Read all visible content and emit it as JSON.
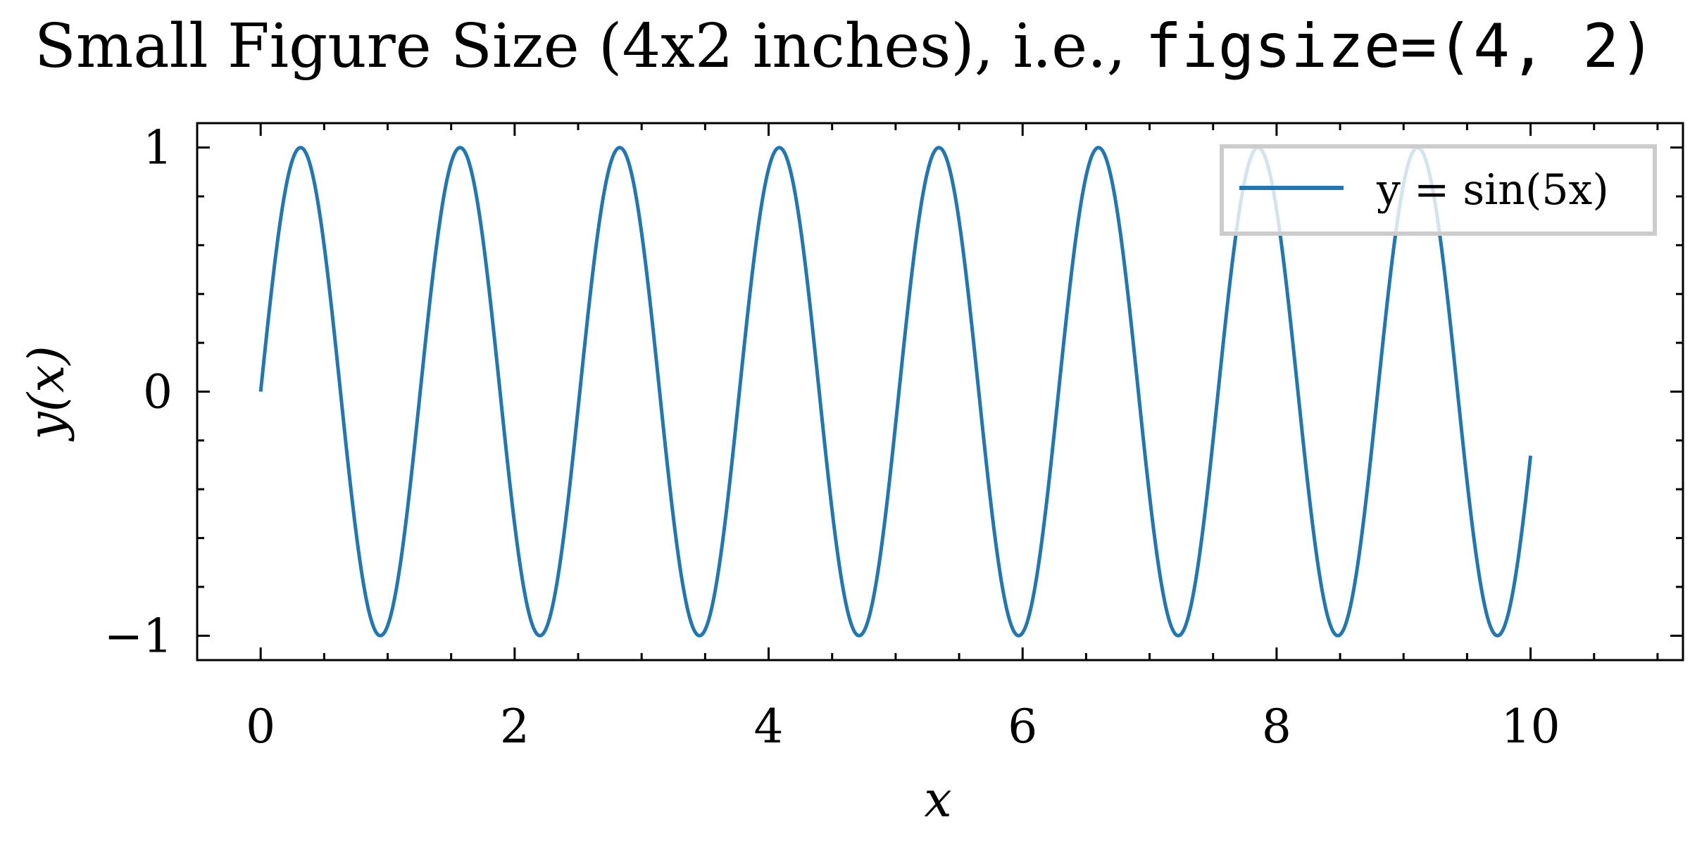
{
  "chart_data": {
    "type": "line",
    "title": {
      "text": "Small Figure Size (4x2 inches), i.e., ",
      "code": "figsize=(4, 2)"
    },
    "xlabel": "x",
    "ylabel": "y(x)",
    "xlim": [
      -0.5,
      11.2
    ],
    "ylim": [
      -1.1,
      1.1
    ],
    "xticks": [
      0,
      2,
      4,
      6,
      8,
      10
    ],
    "xtick_labels": [
      "0",
      "2",
      "4",
      "6",
      "8",
      "10"
    ],
    "yticks": [
      -1,
      0,
      1
    ],
    "ytick_labels": [
      "−1",
      "0",
      "1"
    ],
    "x_minor_step": 0.5,
    "y_minor_step": 0.2,
    "grid": false,
    "legend": {
      "location": "top-right",
      "entries": [
        "y = sin(5x)"
      ]
    },
    "series": [
      {
        "name": "y = sin(5x)",
        "function": "sin(5x)",
        "x_range": [
          0,
          10
        ],
        "sample_points": [
          [
            0,
            0
          ],
          [
            0.314,
            1
          ],
          [
            0.942,
            -1
          ],
          [
            1.571,
            1
          ],
          [
            2.199,
            -1
          ],
          [
            2.827,
            1
          ],
          [
            3.456,
            -1
          ],
          [
            4.084,
            1
          ],
          [
            4.712,
            -1
          ],
          [
            5.341,
            1
          ],
          [
            5.969,
            -1
          ],
          [
            6.597,
            1
          ],
          [
            7.226,
            -1
          ],
          [
            7.854,
            1
          ],
          [
            8.482,
            -1
          ],
          [
            9.111,
            1
          ],
          [
            9.739,
            -1
          ],
          [
            10,
            -0.262
          ]
        ],
        "color": "#1f77b4"
      }
    ]
  }
}
